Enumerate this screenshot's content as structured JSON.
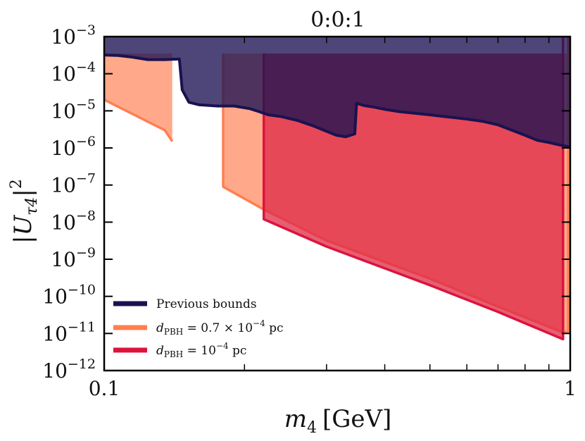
{
  "chart_data": {
    "type": "area",
    "title": "0:0:1",
    "xlabel_var": "m",
    "xlabel_sub": "4",
    "xlabel_unit": "[GeV]",
    "ylabel_var": "|U",
    "ylabel_sub": "τ4",
    "ylabel_close": "|",
    "ylabel_sup": "2",
    "xscale": "log",
    "yscale": "log",
    "xlim": [
      0.1,
      1
    ],
    "ylim": [
      1e-12,
      0.001
    ],
    "x_ticks": [
      {
        "value": 0.1,
        "label": "0.1"
      },
      {
        "value": 1,
        "label": "1"
      }
    ],
    "y_ticks": [
      {
        "exp": -3,
        "base": "10",
        "sup": "−3"
      },
      {
        "exp": -4,
        "base": "10",
        "sup": "−4"
      },
      {
        "exp": -5,
        "base": "10",
        "sup": "−5"
      },
      {
        "exp": -6,
        "base": "10",
        "sup": "−6"
      },
      {
        "exp": -7,
        "base": "10",
        "sup": "−7"
      },
      {
        "exp": -8,
        "base": "10",
        "sup": "−8"
      },
      {
        "exp": -9,
        "base": "10",
        "sup": "−9"
      },
      {
        "exp": -10,
        "base": "10",
        "sup": "−10"
      },
      {
        "exp": -11,
        "base": "10",
        "sup": "−11"
      },
      {
        "exp": -12,
        "base": "10",
        "sup": "−12"
      }
    ],
    "legend_position": "bottom-left",
    "series": [
      {
        "name": "d_PBH = 0.7 × 10^-4 pc",
        "color": "#ff7f50",
        "fill_color": "#ffa98a",
        "regions": [
          {
            "upper": [
              [
                0.1,
                0.00035
              ],
              [
                0.14,
                0.00035
              ],
              [
                0.14,
                1.5e-06
              ]
            ],
            "lower": [
              [
                0.1,
                2e-05
              ],
              [
                0.135,
                3e-06
              ],
              [
                0.14,
                1.5e-06
              ]
            ]
          },
          {
            "upper": [
              [
                0.18,
                0.00035
              ],
              [
                0.99,
                0.00035
              ]
            ],
            "lower": [
              [
                0.18,
                9e-08
              ],
              [
                0.22,
                2.2e-08
              ],
              [
                0.3,
                3.2e-09
              ],
              [
                0.5,
                3e-10
              ],
              [
                0.7,
                5.3e-11
              ],
              [
                0.96,
                1.1e-11
              ]
            ],
            "close_x": 0.99
          }
        ]
      },
      {
        "name": "d_PBH = 10^-4 pc",
        "color": "#dc143c",
        "fill_color": "rgba(223,40,70,0.75)",
        "regions": [
          {
            "upper": [
              [
                0.22,
                0.00035
              ],
              [
                0.965,
                0.00035
              ]
            ],
            "lower": [
              [
                0.22,
                1.2e-08
              ],
              [
                0.3,
                2.2e-09
              ],
              [
                0.5,
                2e-10
              ],
              [
                0.7,
                3.8e-11
              ],
              [
                0.965,
                7e-12
              ]
            ],
            "close_x": 0.965
          }
        ]
      },
      {
        "name": "Previous bounds",
        "color": "#1a1250",
        "fill_color": "rgba(28,18,82,0.78)",
        "boundary": [
          [
            0.1,
            0.00032
          ],
          [
            0.107,
            0.00031
          ],
          [
            0.115,
            0.00028
          ],
          [
            0.124,
            0.00024
          ],
          [
            0.135,
            0.00024
          ],
          [
            0.145,
            0.00025
          ],
          [
            0.147,
            3.7e-05
          ],
          [
            0.152,
            1.7e-05
          ],
          [
            0.16,
            1.45e-05
          ],
          [
            0.175,
            1.35e-05
          ],
          [
            0.19,
            1.35e-05
          ],
          [
            0.205,
            1.15e-05
          ],
          [
            0.215,
            9.5e-06
          ],
          [
            0.225,
            7.8e-06
          ],
          [
            0.24,
            7e-06
          ],
          [
            0.26,
            5.5e-06
          ],
          [
            0.28,
            4e-06
          ],
          [
            0.3,
            2.8e-06
          ],
          [
            0.315,
            2.2e-06
          ],
          [
            0.33,
            2e-06
          ],
          [
            0.345,
            2.4e-06
          ],
          [
            0.348,
            1.6e-05
          ],
          [
            0.36,
            1.4e-05
          ],
          [
            0.38,
            1.25e-05
          ],
          [
            0.4,
            1.1e-05
          ],
          [
            0.43,
            9.5e-06
          ],
          [
            0.47,
            8.5e-06
          ],
          [
            0.5,
            7.8e-06
          ],
          [
            0.55,
            6.8e-06
          ],
          [
            0.6,
            6e-06
          ],
          [
            0.65,
            5.2e-06
          ],
          [
            0.7,
            4.2e-06
          ],
          [
            0.75,
            3e-06
          ],
          [
            0.8,
            2.2e-06
          ],
          [
            0.85,
            1.6e-06
          ],
          [
            0.9,
            1.4e-06
          ],
          [
            0.95,
            1.2e-06
          ],
          [
            1.0,
            1.05e-06
          ]
        ]
      }
    ],
    "legend": [
      {
        "color": "#1a1250",
        "label": "Previous bounds",
        "var": "",
        "sub": "",
        "mid": "",
        "sup": "",
        "tail": ""
      },
      {
        "color": "#ff7f50",
        "label": "",
        "var": "d",
        "sub": "PBH",
        "mid": " = 0.7 × 10",
        "sup": "−4",
        "tail": " pc"
      },
      {
        "color": "#dc143c",
        "label": "",
        "var": "d",
        "sub": "PBH",
        "mid": " = 10",
        "sup": "−4",
        "tail": " pc"
      }
    ]
  }
}
